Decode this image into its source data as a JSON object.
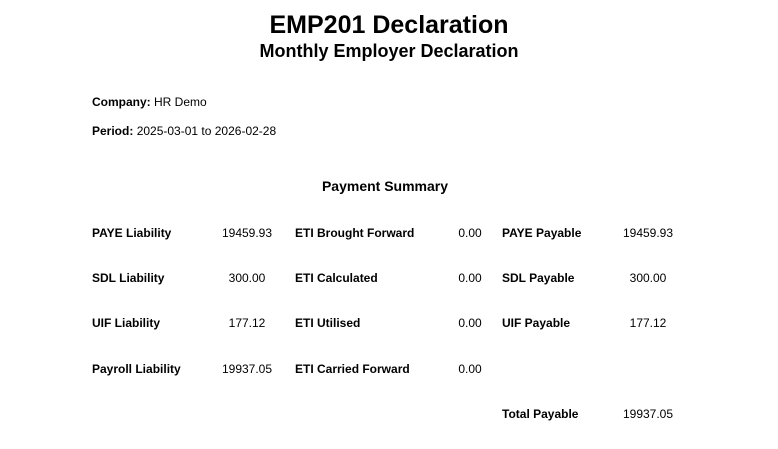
{
  "header": {
    "title": "EMP201 Declaration",
    "subtitle": "Monthly Employer Declaration"
  },
  "company": {
    "label": "Company:",
    "value": "HR Demo"
  },
  "period": {
    "label": "Period:",
    "value": "2025-03-01 to 2026-02-28"
  },
  "summary": {
    "title": "Payment Summary",
    "rows": [
      {
        "liability_label": "PAYE Liability",
        "liability_value": "19459.93",
        "eti_label": "ETI Brought Forward",
        "eti_value": "0.00",
        "payable_label": "PAYE Payable",
        "payable_value": "19459.93"
      },
      {
        "liability_label": "SDL Liability",
        "liability_value": "300.00",
        "eti_label": "ETI Calculated",
        "eti_value": "0.00",
        "payable_label": "SDL Payable",
        "payable_value": "300.00"
      },
      {
        "liability_label": "UIF Liability",
        "liability_value": "177.12",
        "eti_label": "ETI Utilised",
        "eti_value": "0.00",
        "payable_label": "UIF Payable",
        "payable_value": "177.12"
      },
      {
        "liability_label": "Payroll Liability",
        "liability_value": "19937.05",
        "eti_label": "ETI Carried Forward",
        "eti_value": "0.00"
      }
    ],
    "total_label": "Total Payable",
    "total_value": "19937.05"
  }
}
